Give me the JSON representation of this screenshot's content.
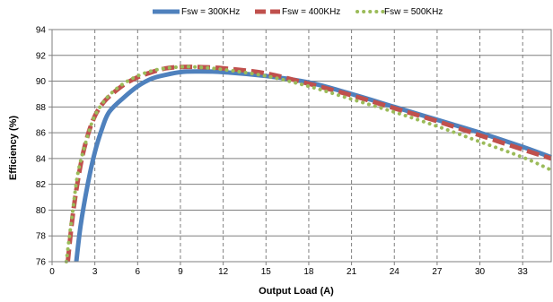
{
  "chart_data": {
    "type": "line",
    "title": "",
    "xlabel": "Output Load (A)",
    "ylabel": "Efficiency (%)",
    "xlim": [
      0,
      35
    ],
    "ylim": [
      76,
      94
    ],
    "x_ticks": [
      0,
      3,
      6,
      9,
      12,
      15,
      18,
      21,
      24,
      27,
      30,
      33
    ],
    "y_ticks": [
      76,
      78,
      80,
      82,
      84,
      86,
      88,
      90,
      92,
      94
    ],
    "grid": "both",
    "legend_position": "top-center",
    "series": [
      {
        "name": "Fsw = 300KHz",
        "color": "#4f81bd",
        "style": "solid",
        "x": [
          1.7,
          2.0,
          2.5,
          3.0,
          3.5,
          4.0,
          5.0,
          6.0,
          7.0,
          8.0,
          9.0,
          10.0,
          12.0,
          15.0,
          18.0,
          21.0,
          24.0,
          27.0,
          30.0,
          33.0,
          35.0
        ],
        "y": [
          76.0,
          78.8,
          82.0,
          84.5,
          86.3,
          87.6,
          88.7,
          89.6,
          90.2,
          90.5,
          90.7,
          90.75,
          90.7,
          90.4,
          89.9,
          89.0,
          88.0,
          87.0,
          86.0,
          84.9,
          84.1
        ]
      },
      {
        "name": "Fsw = 400KHz",
        "color": "#c0504d",
        "style": "dashed",
        "x": [
          1.1,
          1.5,
          2.0,
          2.5,
          3.0,
          3.5,
          4.0,
          5.0,
          6.0,
          7.0,
          8.0,
          9.0,
          10.0,
          12.0,
          15.0,
          18.0,
          21.0,
          24.0,
          27.0,
          30.0,
          33.0,
          35.0
        ],
        "y": [
          76.0,
          80.0,
          83.5,
          85.8,
          87.3,
          88.2,
          88.8,
          89.7,
          90.3,
          90.7,
          91.0,
          91.1,
          91.1,
          91.0,
          90.6,
          89.8,
          88.9,
          87.9,
          86.9,
          85.8,
          84.7,
          84.0
        ]
      },
      {
        "name": "Fsw = 500KHz",
        "color": "#9bbb59",
        "style": "dotted",
        "x": [
          1.0,
          1.4,
          1.8,
          2.3,
          2.8,
          3.3,
          4.0,
          5.0,
          6.0,
          7.0,
          8.0,
          9.0,
          10.0,
          12.0,
          15.0,
          18.0,
          21.0,
          24.0,
          27.0,
          30.0,
          33.0,
          35.0
        ],
        "y": [
          76.0,
          79.5,
          82.8,
          85.0,
          86.8,
          87.9,
          88.9,
          89.8,
          90.4,
          90.8,
          91.0,
          91.1,
          91.1,
          90.9,
          90.4,
          89.6,
          88.6,
          87.6,
          86.5,
          85.3,
          84.1,
          83.1
        ]
      }
    ]
  }
}
